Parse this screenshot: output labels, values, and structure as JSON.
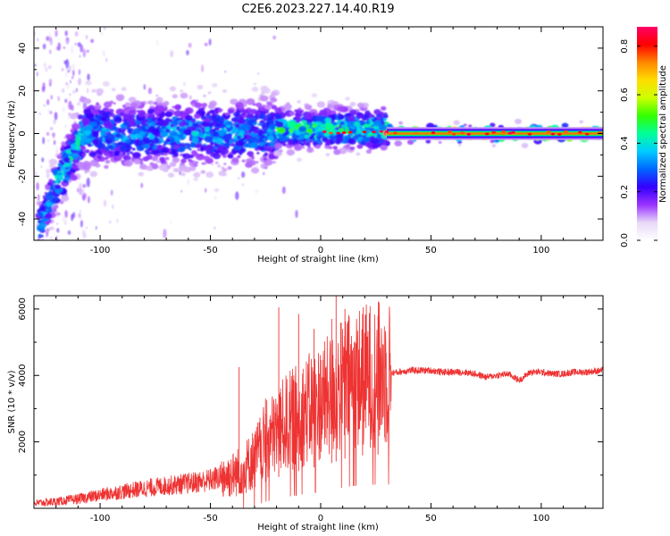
{
  "title": "C2E6.2023.227.14.40.R19",
  "colors": {
    "snr_line": "#ee3333",
    "axis": "#000000",
    "background": "#ffffff"
  },
  "chart_data": [
    {
      "type": "heatmap",
      "name": "spectrogram",
      "xlabel": "Height of straight line (km)",
      "ylabel": "Frequency (Hz)",
      "xlim": [
        -130,
        128
      ],
      "ylim": [
        -50,
        50
      ],
      "xticks": [
        -100,
        -50,
        0,
        50,
        100
      ],
      "yticks": [
        -40,
        -20,
        0,
        20,
        40
      ],
      "colorbar": {
        "label": "Normalized spectral amplitude",
        "range": [
          0,
          0.88
        ],
        "ticks": [
          0.0,
          0.2,
          0.4,
          0.6,
          0.8
        ],
        "colormap": [
          "#ffffff",
          "#e8d8f8",
          "#9933ff",
          "#3300ff",
          "#0066ff",
          "#00ccff",
          "#00ff99",
          "#33ff00",
          "#ccff00",
          "#ffdd00",
          "#ff8800",
          "#ff0000",
          "#ff0066"
        ]
      },
      "features": [
        {
          "x": [
            -128,
            -120
          ],
          "freq_center": [
            -45,
            -25
          ],
          "amplitude": 0.25,
          "spread_hz": 6
        },
        {
          "x": [
            -120,
            -108
          ],
          "freq_center": [
            -25,
            0
          ],
          "amplitude": 0.3,
          "spread_hz": 7
        },
        {
          "x": [
            -108,
            -20
          ],
          "freq_center": [
            0,
            0
          ],
          "amplitude": 0.25,
          "spread_hz": 8
        },
        {
          "x": [
            -20,
            30
          ],
          "freq_center": [
            2,
            2
          ],
          "amplitude": 0.35,
          "spread_hz": 5
        },
        {
          "x": [
            30,
            128
          ],
          "freq_center": [
            0,
            0
          ],
          "amplitude": 0.8,
          "spread_hz": 2
        }
      ]
    },
    {
      "type": "line",
      "name": "snr",
      "xlabel": "Height of straight line (km)",
      "ylabel": "SNR (10 * v/v)",
      "xlim": [
        -130,
        128
      ],
      "ylim": [
        0,
        6400
      ],
      "xticks": [
        -100,
        -50,
        0,
        50,
        100
      ],
      "yticks": [
        2000,
        4000,
        6000
      ],
      "x": [
        -130,
        -120,
        -110,
        -100,
        -90,
        -80,
        -70,
        -60,
        -50,
        -45,
        -40,
        -35,
        -30,
        -25,
        -20,
        -15,
        -10,
        -5,
        0,
        5,
        10,
        15,
        20,
        25,
        30,
        35,
        40,
        45,
        50,
        55,
        60,
        65,
        70,
        75,
        80,
        85,
        90,
        95,
        100,
        105,
        110,
        115,
        120,
        128
      ],
      "y": [
        150,
        200,
        280,
        400,
        500,
        600,
        680,
        750,
        850,
        950,
        1000,
        1200,
        1500,
        2000,
        2300,
        2600,
        2800,
        3000,
        3200,
        3400,
        3700,
        3900,
        4000,
        4050,
        4050,
        4100,
        4150,
        4150,
        4150,
        4100,
        4100,
        4100,
        4050,
        3950,
        4000,
        4050,
        3850,
        4100,
        4100,
        4050,
        4050,
        4100,
        4100,
        4150
      ],
      "spikes": [
        {
          "x": -37,
          "y": 4250
        },
        {
          "x": -25,
          "y": 3300
        },
        {
          "x": -19,
          "y": 6050
        },
        {
          "x": -10,
          "y": 5850
        },
        {
          "x": -3,
          "y": 5400
        },
        {
          "x": 5,
          "y": 5700
        },
        {
          "x": 7,
          "y": 6400
        },
        {
          "x": 11,
          "y": 6000
        },
        {
          "x": 19,
          "y": 5850
        },
        {
          "x": 26,
          "y": 5800
        }
      ]
    }
  ]
}
